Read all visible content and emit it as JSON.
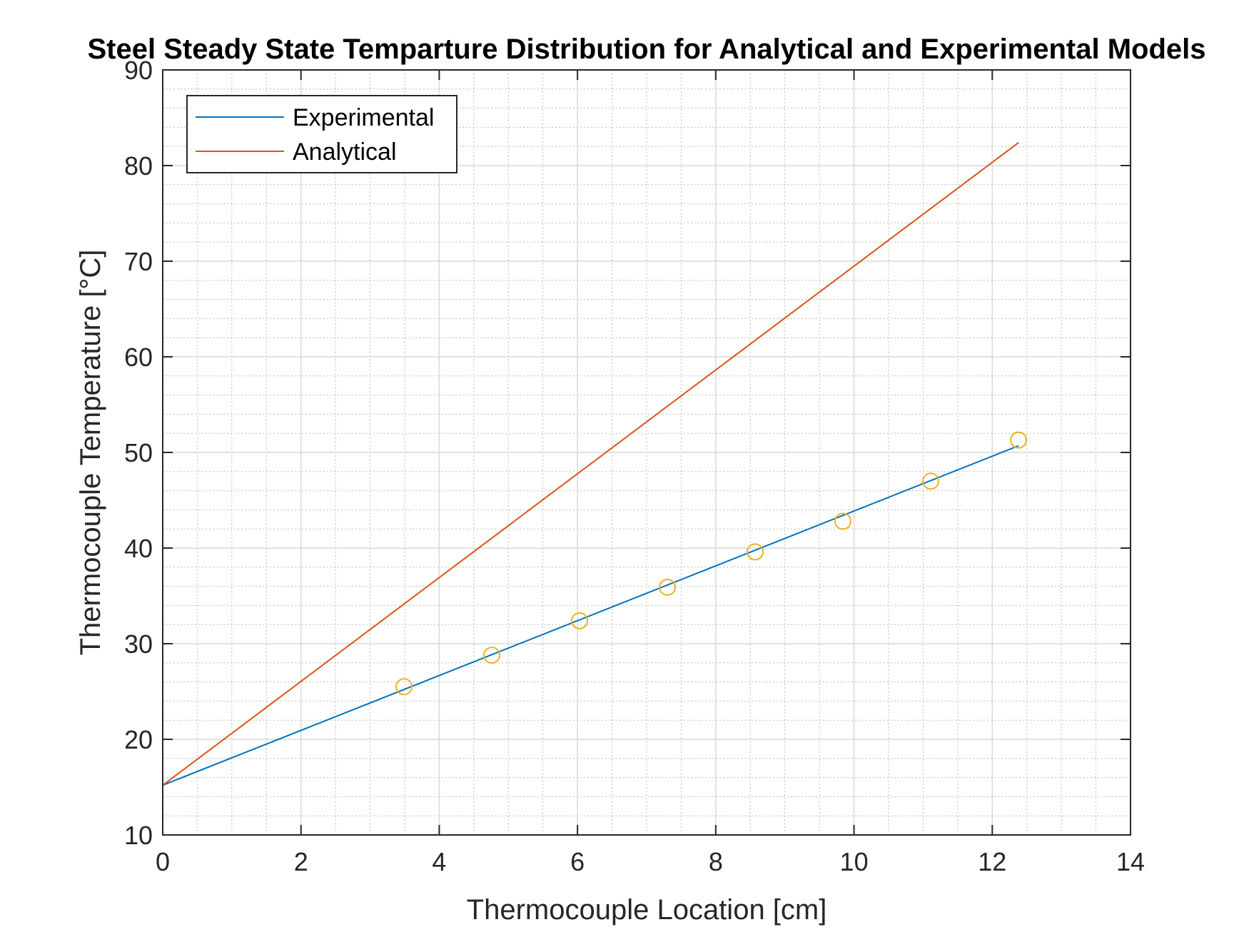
{
  "chart_data": {
    "type": "line",
    "title": "Steel Steady State Temparture Distribution for Analytical and Experimental Models",
    "xlabel": "Thermocouple Location [cm]",
    "ylabel": "Thermocouple Temperature [°C]",
    "xlim": [
      0,
      14
    ],
    "ylim": [
      10,
      90
    ],
    "xticks": [
      0,
      2,
      4,
      6,
      8,
      10,
      12,
      14
    ],
    "yticks": [
      10,
      20,
      30,
      40,
      50,
      60,
      70,
      80,
      90
    ],
    "grid": true,
    "minor_grid": true,
    "legend_position": "top-left",
    "series": [
      {
        "name": "Experimental",
        "kind": "line",
        "color": "#0072BD",
        "x": [
          0,
          12.38
        ],
        "y": [
          15.2,
          50.7
        ]
      },
      {
        "name": "Analytical",
        "kind": "line",
        "color": "#D95319",
        "x": [
          0,
          12.38
        ],
        "y": [
          15.2,
          82.4
        ]
      },
      {
        "kind": "markers",
        "marker": "circle",
        "color": "#EDB120",
        "x": [
          3.49,
          4.76,
          6.03,
          7.3,
          8.57,
          9.84,
          11.11,
          12.38
        ],
        "y": [
          25.5,
          28.8,
          32.4,
          35.9,
          39.6,
          42.8,
          47.0,
          51.3
        ]
      }
    ]
  }
}
